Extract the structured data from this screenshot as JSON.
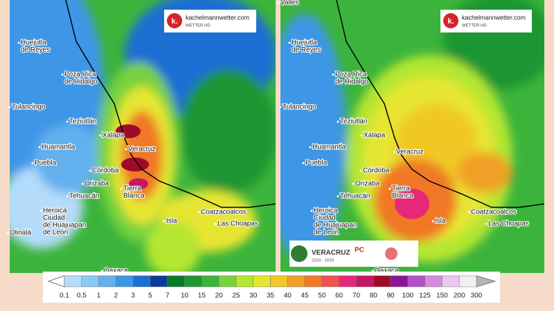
{
  "left_map": {
    "cities": [
      {
        "lines": [
          "Huejutla",
          "de Reyes"
        ]
      },
      {
        "lines": [
          "Poza Rica",
          "de Hidalgo"
        ]
      },
      {
        "lines": [
          "Tulancingo"
        ]
      },
      {
        "lines": [
          "Teziutlán"
        ]
      },
      {
        "lines": [
          "Xalapa"
        ]
      },
      {
        "lines": [
          "Huamantla"
        ]
      },
      {
        "lines": [
          "Puebla"
        ]
      },
      {
        "lines": [
          "Veracruz"
        ]
      },
      {
        "lines": [
          "Córdoba"
        ]
      },
      {
        "lines": [
          "Orizaba"
        ]
      },
      {
        "lines": [
          "Tehuacán"
        ]
      },
      {
        "lines": [
          "Tierra",
          "Blanca"
        ]
      },
      {
        "lines": [
          "Heroica",
          "Ciudad",
          "de Huajuapan",
          "de León"
        ]
      },
      {
        "lines": [
          "Coatzacoalcos"
        ]
      },
      {
        "lines": [
          "Las Choapas"
        ]
      },
      {
        "lines": [
          "Isla"
        ]
      },
      {
        "lines": [
          "Oaxaca"
        ]
      },
      {
        "lines": [
          "Olinalá"
        ]
      }
    ],
    "logo": {
      "name": "kachelmannwetter.com",
      "sub": "WETTER HD"
    }
  },
  "right_map": {
    "cities": [
      {
        "lines": [
          "Valles"
        ]
      },
      {
        "lines": [
          "Huejutla",
          "de Reyes"
        ]
      },
      {
        "lines": [
          "Poza Rica",
          "de Hidalgo"
        ]
      },
      {
        "lines": [
          "Tulancingo"
        ]
      },
      {
        "lines": [
          "Teziutlán"
        ]
      },
      {
        "lines": [
          "Xalapa"
        ]
      },
      {
        "lines": [
          "Huamantla"
        ]
      },
      {
        "lines": [
          "Puebla"
        ]
      },
      {
        "lines": [
          "Veracruz"
        ]
      },
      {
        "lines": [
          "Córdoba"
        ]
      },
      {
        "lines": [
          "Orizaba"
        ]
      },
      {
        "lines": [
          "Tehuacán"
        ]
      },
      {
        "lines": [
          "Tierra",
          "Blanca"
        ]
      },
      {
        "lines": [
          "Heroica",
          "Ciudad",
          "de Huajuapan",
          "de León"
        ]
      },
      {
        "lines": [
          "Coatzacoalcos"
        ]
      },
      {
        "lines": [
          "Las Choapas"
        ]
      },
      {
        "lines": [
          "Isla"
        ]
      },
      {
        "lines": [
          "Oaxaca"
        ]
      }
    ],
    "logo": {
      "name": "kachelmannwetter.com",
      "sub": "WETTER HD"
    },
    "sponsor": {
      "state": "VERACRUZ",
      "years": "2024 - 2030",
      "pc": "PC"
    }
  },
  "legend": {
    "labels": [
      "0.1",
      "0.5",
      "1",
      "2",
      "3",
      "5",
      "7",
      "10",
      "15",
      "20",
      "25",
      "30",
      "35",
      "40",
      "45",
      "50",
      "60",
      "70",
      "80",
      "90",
      "100",
      "125",
      "150",
      "200",
      "300"
    ],
    "colors": [
      "#b4dcfa",
      "#8cc8f5",
      "#64b0ee",
      "#3c96e6",
      "#1e6ed2",
      "#0a3c9b",
      "#0a7828",
      "#1e9632",
      "#3cb43c",
      "#78d23c",
      "#b4e632",
      "#e6e632",
      "#f0c828",
      "#f0a028",
      "#f07828",
      "#f05050",
      "#e62878",
      "#c81464",
      "#a00a28",
      "#8c1496",
      "#b450c8",
      "#d28cdc",
      "#ebc8f0",
      "#f0f0f0"
    ],
    "under_color": "#ffffff",
    "over_color": "#b4b4b4"
  }
}
